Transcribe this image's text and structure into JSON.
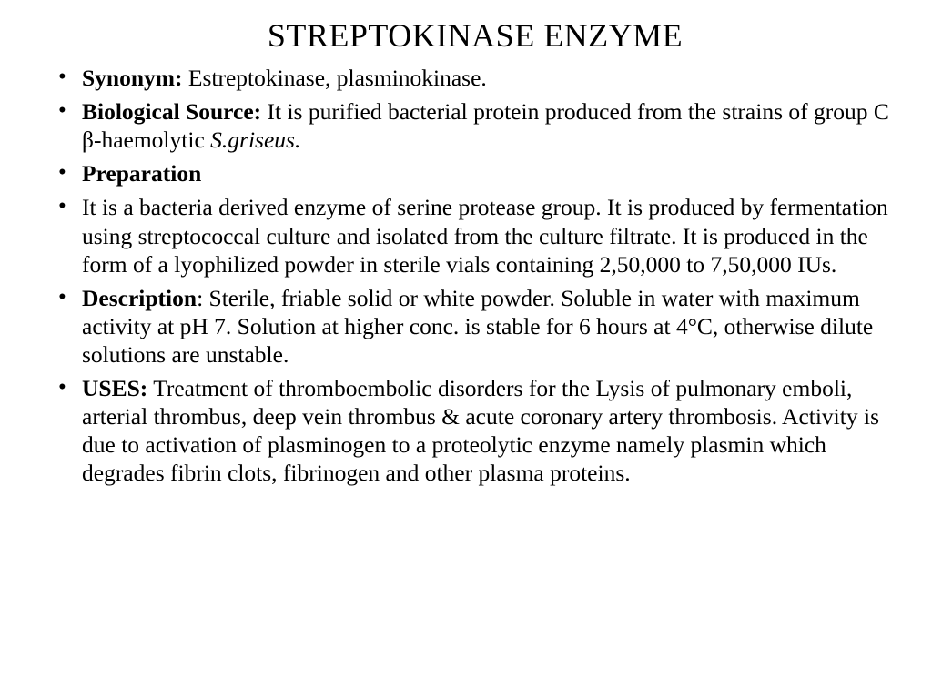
{
  "title": "STREPTOKINASE ENZYME",
  "title_fontsize": 36,
  "body_fontsize": 25.5,
  "line_height": 1.22,
  "text_color": "#000000",
  "background_color": "#ffffff",
  "font_family": "Times New Roman",
  "bullets": [
    {
      "label": "Synonym:",
      "text": " Estreptokinase, plasminokinase."
    },
    {
      "label": "Biological Source:",
      "text": " It is purified bacterial protein produced from the strains of group C β-haemolytic ",
      "italic_tail": "S.griseus."
    },
    {
      "label": "Preparation",
      "text": ""
    },
    {
      "label": "",
      "text": "It is a bacteria derived enzyme of serine protease group. It is produced by fermentation using streptococcal culture and isolated from the culture filtrate. It is produced in the form of a lyophilized powder in sterile vials containing 2,50,000 to 7,50,000 IUs."
    },
    {
      "label": "Description",
      "text": ": Sterile, friable solid or white powder. Soluble in water with maximum  activity at pH 7. Solution at higher conc. is stable for 6 hours at 4°C, otherwise dilute  solutions are unstable."
    },
    {
      "label": "USES:",
      "text": " Treatment of thromboembolic disorders for the Lysis of pulmonary emboli, arterial thrombus, deep vein thrombus & acute coronary artery thrombosis. Activity is due to activation of plasminogen to a proteolytic enzyme namely  plasmin which degrades fibrin clots, fibrinogen and other plasma proteins."
    }
  ]
}
